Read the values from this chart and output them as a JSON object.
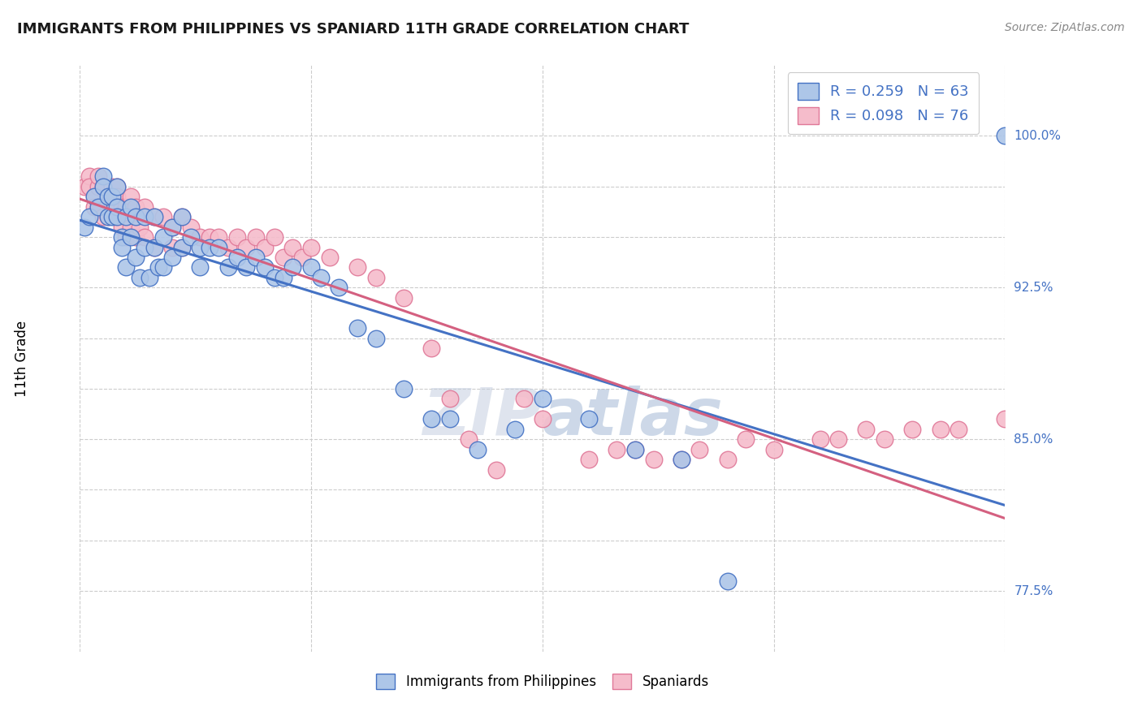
{
  "title": "IMMIGRANTS FROM PHILIPPINES VS SPANIARD 11TH GRADE CORRELATION CHART",
  "source": "Source: ZipAtlas.com",
  "ylabel": "11th Grade",
  "y_ticks": [
    0.775,
    0.8,
    0.825,
    0.85,
    0.875,
    0.9,
    0.925,
    0.95,
    0.975,
    1.0
  ],
  "y_tick_labels_shown": {
    "0.775": "77.5%",
    "0.850": "85.0%",
    "0.925": "92.5%",
    "1.000": "100.0%"
  },
  "x_min": 0.0,
  "x_max": 1.0,
  "y_min": 0.745,
  "y_max": 1.035,
  "blue_R": 0.259,
  "blue_N": 63,
  "pink_R": 0.098,
  "pink_N": 76,
  "blue_color": "#adc6e8",
  "pink_color": "#f5bccb",
  "blue_edge_color": "#4472c4",
  "pink_edge_color": "#e07898",
  "blue_line_color": "#4472c4",
  "pink_line_color": "#d46080",
  "title_color": "#1a1a1a",
  "axis_label_color": "#4472c4",
  "legend_text_color": "#4472c4",
  "grid_color": "#cccccc",
  "watermark_color": "#ccd5e8",
  "blue_x": [
    0.005,
    0.01,
    0.015,
    0.02,
    0.025,
    0.025,
    0.03,
    0.03,
    0.035,
    0.035,
    0.04,
    0.04,
    0.04,
    0.045,
    0.045,
    0.05,
    0.05,
    0.055,
    0.055,
    0.06,
    0.06,
    0.065,
    0.07,
    0.07,
    0.075,
    0.08,
    0.08,
    0.085,
    0.09,
    0.09,
    0.1,
    0.1,
    0.11,
    0.11,
    0.12,
    0.13,
    0.13,
    0.14,
    0.15,
    0.16,
    0.17,
    0.18,
    0.19,
    0.2,
    0.21,
    0.22,
    0.23,
    0.25,
    0.26,
    0.28,
    0.3,
    0.32,
    0.35,
    0.38,
    0.4,
    0.43,
    0.47,
    0.5,
    0.55,
    0.6,
    0.65,
    0.7,
    1.0
  ],
  "blue_y": [
    0.955,
    0.96,
    0.97,
    0.965,
    0.98,
    0.975,
    0.97,
    0.96,
    0.97,
    0.96,
    0.975,
    0.965,
    0.96,
    0.95,
    0.945,
    0.96,
    0.935,
    0.965,
    0.95,
    0.96,
    0.94,
    0.93,
    0.96,
    0.945,
    0.93,
    0.96,
    0.945,
    0.935,
    0.95,
    0.935,
    0.955,
    0.94,
    0.96,
    0.945,
    0.95,
    0.945,
    0.935,
    0.945,
    0.945,
    0.935,
    0.94,
    0.935,
    0.94,
    0.935,
    0.93,
    0.93,
    0.935,
    0.935,
    0.93,
    0.925,
    0.905,
    0.9,
    0.875,
    0.86,
    0.86,
    0.845,
    0.855,
    0.87,
    0.86,
    0.845,
    0.84,
    0.78,
    1.0
  ],
  "pink_x": [
    0.005,
    0.01,
    0.01,
    0.015,
    0.015,
    0.02,
    0.02,
    0.02,
    0.025,
    0.025,
    0.03,
    0.03,
    0.035,
    0.035,
    0.04,
    0.04,
    0.04,
    0.045,
    0.045,
    0.05,
    0.05,
    0.055,
    0.055,
    0.06,
    0.06,
    0.065,
    0.07,
    0.07,
    0.08,
    0.08,
    0.09,
    0.1,
    0.1,
    0.11,
    0.11,
    0.12,
    0.13,
    0.14,
    0.15,
    0.16,
    0.17,
    0.18,
    0.19,
    0.2,
    0.21,
    0.22,
    0.23,
    0.24,
    0.25,
    0.27,
    0.3,
    0.32,
    0.35,
    0.38,
    0.4,
    0.42,
    0.45,
    0.48,
    0.5,
    0.55,
    0.58,
    0.6,
    0.62,
    0.65,
    0.67,
    0.7,
    0.72,
    0.75,
    0.8,
    0.82,
    0.85,
    0.87,
    0.9,
    0.93,
    0.95,
    1.0
  ],
  "pink_y": [
    0.975,
    0.98,
    0.975,
    0.97,
    0.965,
    0.975,
    0.965,
    0.98,
    0.975,
    0.96,
    0.97,
    0.96,
    0.975,
    0.965,
    0.975,
    0.96,
    0.97,
    0.965,
    0.955,
    0.965,
    0.95,
    0.97,
    0.955,
    0.965,
    0.95,
    0.955,
    0.965,
    0.95,
    0.96,
    0.945,
    0.96,
    0.955,
    0.945,
    0.96,
    0.945,
    0.955,
    0.95,
    0.95,
    0.95,
    0.945,
    0.95,
    0.945,
    0.95,
    0.945,
    0.95,
    0.94,
    0.945,
    0.94,
    0.945,
    0.94,
    0.935,
    0.93,
    0.92,
    0.895,
    0.87,
    0.85,
    0.835,
    0.87,
    0.86,
    0.84,
    0.845,
    0.845,
    0.84,
    0.84,
    0.845,
    0.84,
    0.85,
    0.845,
    0.85,
    0.85,
    0.855,
    0.85,
    0.855,
    0.855,
    0.855,
    0.86
  ]
}
